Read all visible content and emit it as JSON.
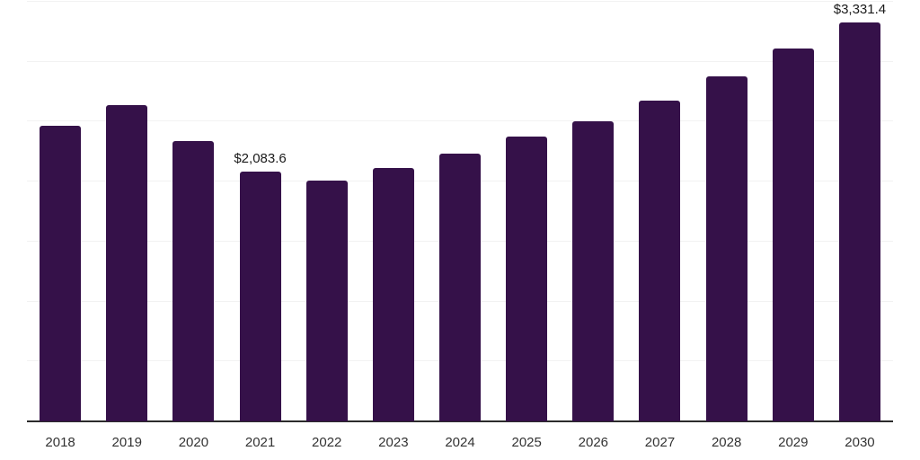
{
  "chart_data": {
    "type": "bar",
    "title": "",
    "xlabel": "",
    "ylabel": "",
    "categories": [
      "2018",
      "2019",
      "2020",
      "2021",
      "2022",
      "2023",
      "2024",
      "2025",
      "2026",
      "2027",
      "2028",
      "2029",
      "2030"
    ],
    "values": [
      2465,
      2640,
      2340,
      2083.6,
      2010,
      2115,
      2235,
      2375,
      2500,
      2675,
      2875,
      3110,
      3331.4
    ],
    "point_labels": [
      {
        "index": 3,
        "text": "$2,083.6"
      },
      {
        "index": 12,
        "text": "$3,331.4"
      }
    ],
    "ylim": [
      0,
      3500
    ],
    "gridline_step": 500,
    "grid_on": true,
    "legend": "none",
    "colors": {
      "bar": "#351149",
      "gridline": "#f2f2f2",
      "axis_line": "#2b2b2b",
      "tick_label": "#333333",
      "data_label": "#1a1a1a",
      "background": "#ffffff"
    }
  }
}
